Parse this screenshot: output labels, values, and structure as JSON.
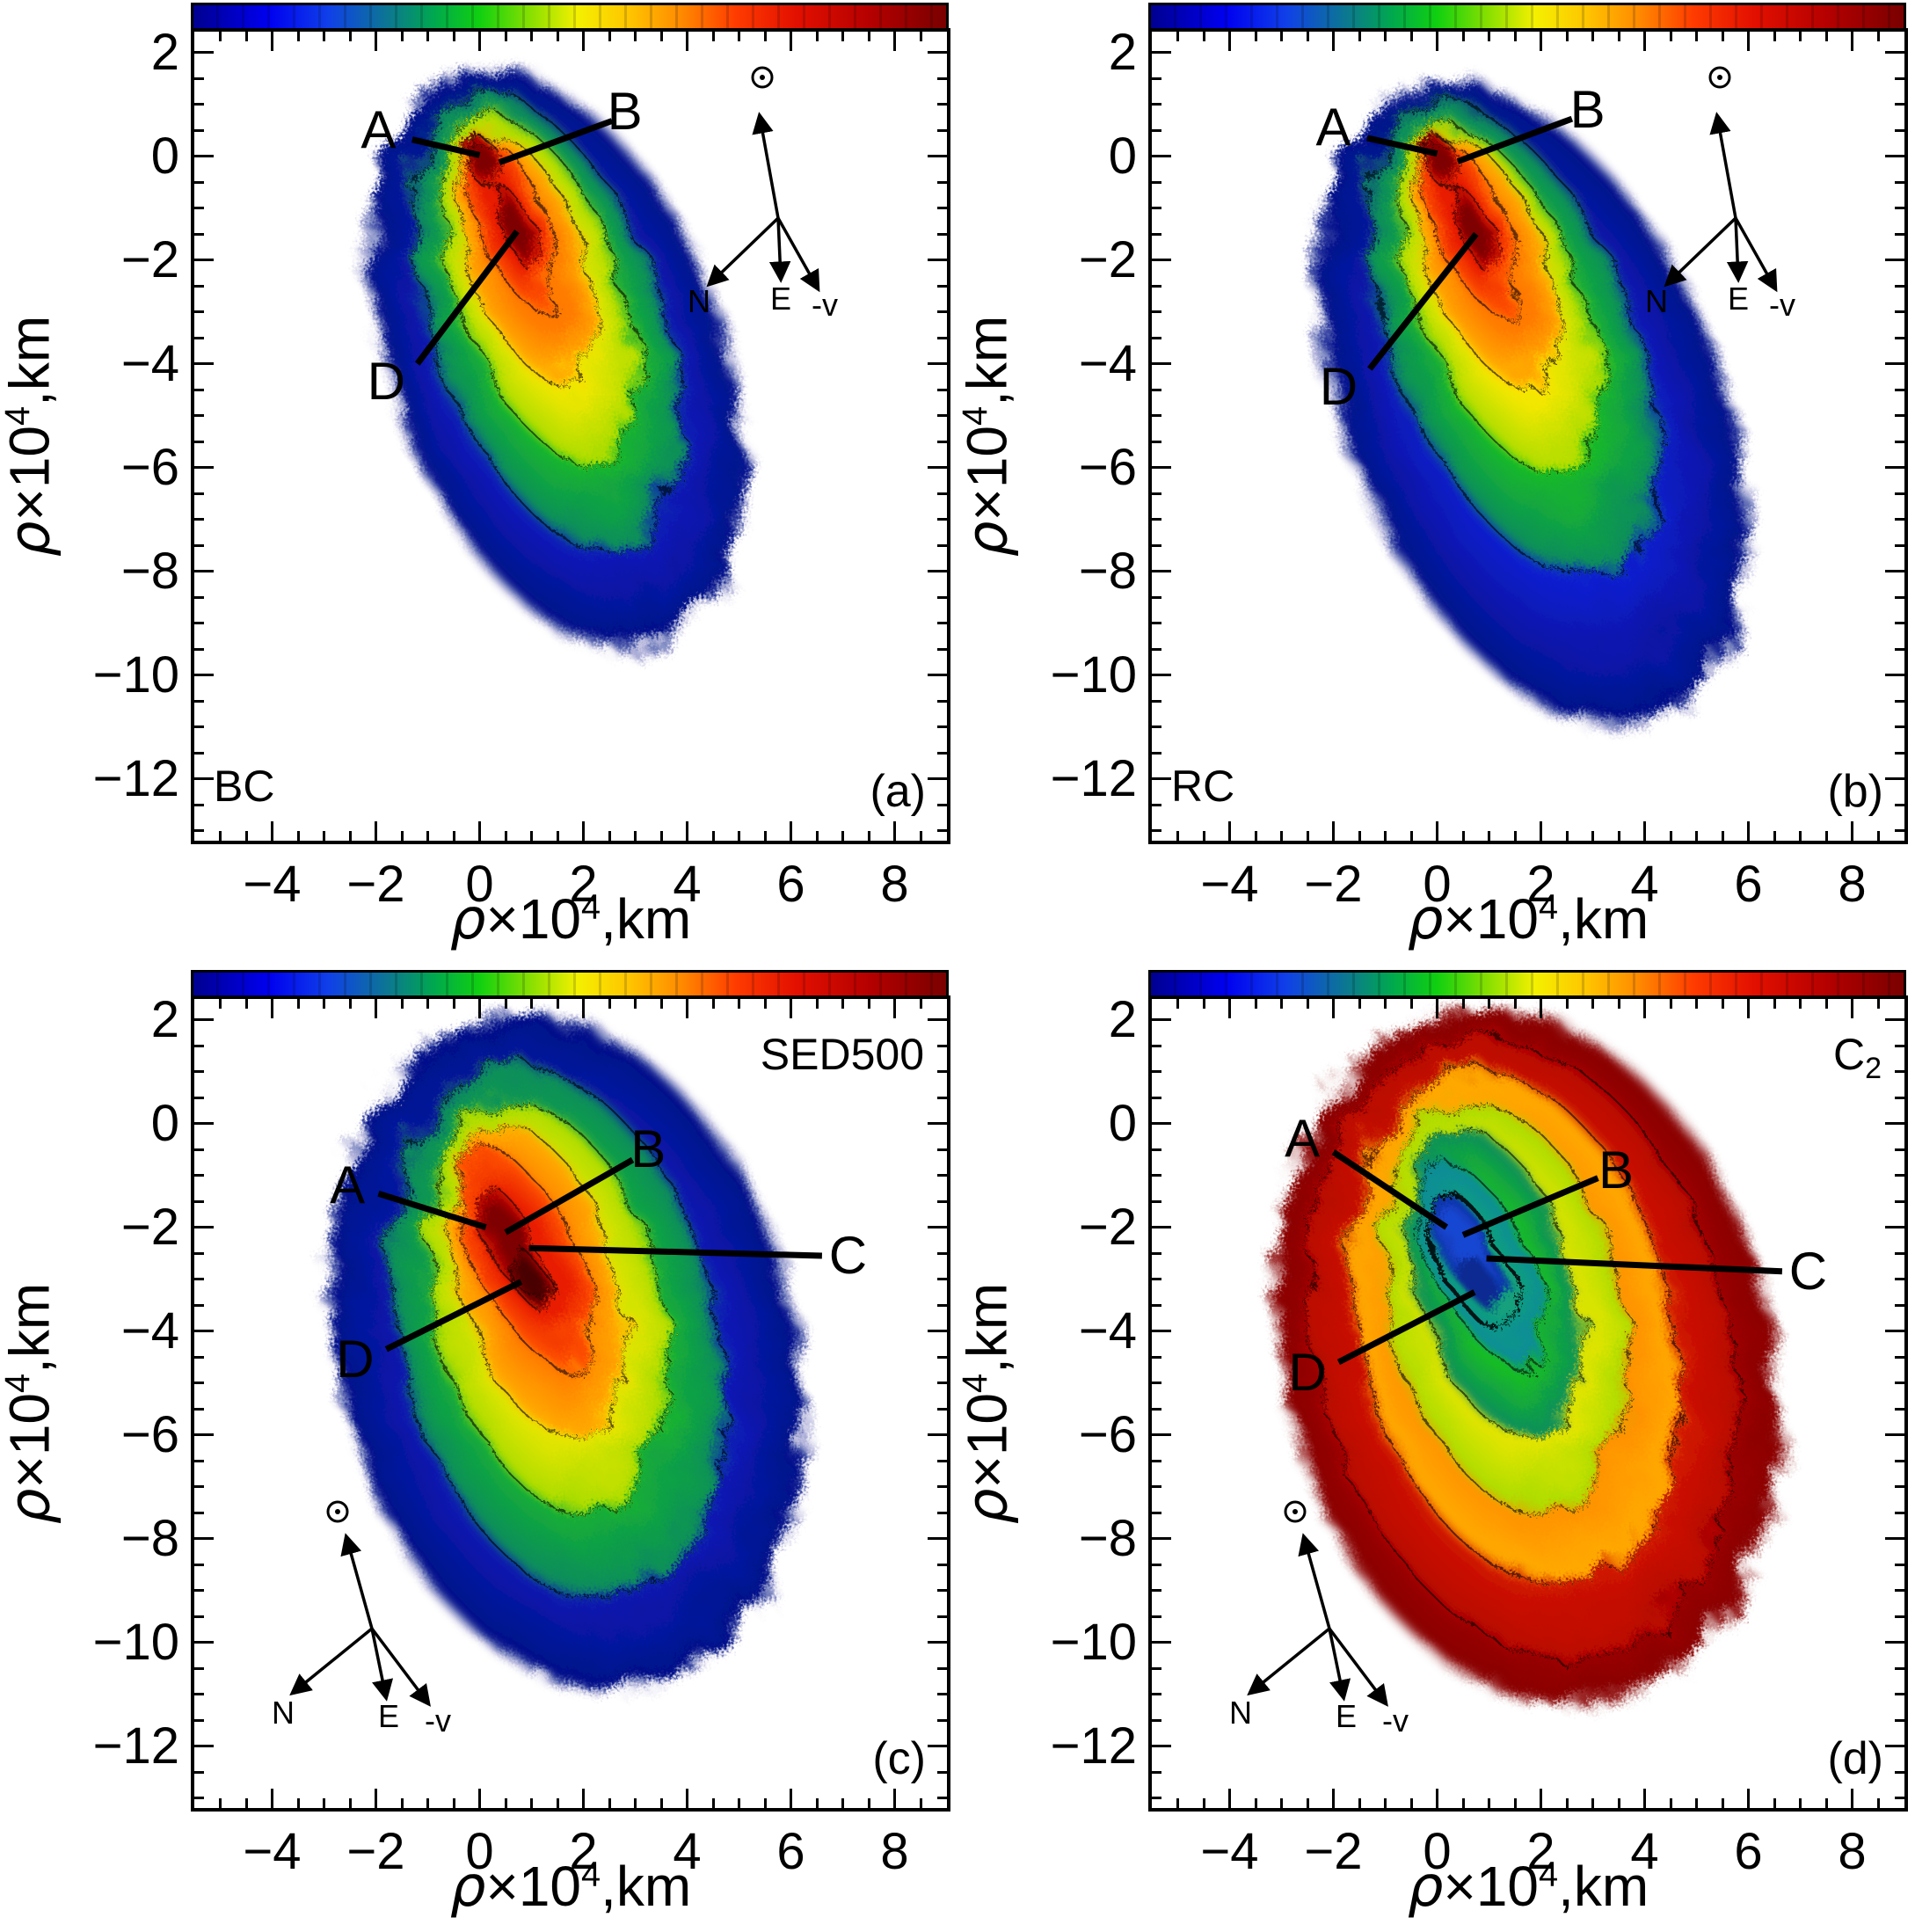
{
  "figure": {
    "axis_label": {
      "rho": "ρ",
      "base": "×10",
      "sup": "4",
      "unit": ",km"
    },
    "compass_labels": {
      "north": "N",
      "east": "E",
      "velocity": "-v",
      "sun_symbol": "⊙"
    },
    "colors": {
      "blue": "#0b1fd6",
      "blue_edge": "#041084",
      "green": "#17c31d",
      "green_edge": "#0d8a60",
      "yellow": "#ffe900",
      "yellow_edge": "#a8dc00",
      "orange": "#ff7a00",
      "orange_edge": "#ffae00",
      "red": "#e81c00",
      "red_edge": "#ff5400",
      "darkred": "#7e0000",
      "darkred_edge": "#c40800",
      "darkest": "#4a0000",
      "outer_darkred": "#c00800",
      "outer_darkred_edge": "#870000",
      "red2": "#e82400",
      "red2_edge": "#b80600",
      "teal": "#12a07c",
      "teal_edge": "#0c8a9a",
      "core_blue": "#1747d2",
      "core_blue_edge": "#0c2fa0",
      "core_navy": "#0a2a92"
    },
    "colorbar_stops": [
      "#000090 0%",
      "#0000f0 10%",
      "#1040e8 18%",
      "#0c7890 26%",
      "#00a84e 32%",
      "#10d010 38%",
      "#8ce000 45%",
      "#f4f000 51%",
      "#ffc400 58%",
      "#ff8800 65%",
      "#ff3c00 72%",
      "#e31000 80%",
      "#b40000 90%",
      "#7a0000 100%"
    ]
  },
  "panels": [
    {
      "id": "a",
      "tag": "(a)",
      "label": "BC",
      "label_sub": "",
      "xticks": [
        "−4",
        "−2",
        "0",
        "2",
        "4",
        "6",
        "8"
      ],
      "yticks": [
        "2",
        "0",
        "−2",
        "−4",
        "−6",
        "−8",
        "−10",
        "−12"
      ],
      "markers": [
        {
          "t": "A"
        },
        {
          "t": "B"
        },
        {
          "t": "D"
        }
      ]
    },
    {
      "id": "b",
      "tag": "(b)",
      "label": "RC",
      "label_sub": "",
      "xticks": [
        "−4",
        "−2",
        "0",
        "2",
        "4",
        "6",
        "8"
      ],
      "yticks": [
        "2",
        "0",
        "−2",
        "−4",
        "−6",
        "−8",
        "−10",
        "−12"
      ],
      "markers": [
        {
          "t": "A"
        },
        {
          "t": "B"
        },
        {
          "t": "D"
        }
      ]
    },
    {
      "id": "c",
      "tag": "(c)",
      "label": "SED500",
      "label_sub": "",
      "xticks": [
        "−4",
        "−2",
        "0",
        "2",
        "4",
        "6",
        "8"
      ],
      "yticks": [
        "2",
        "0",
        "−2",
        "−4",
        "−6",
        "−8",
        "−10",
        "−12"
      ],
      "markers": [
        {
          "t": "A"
        },
        {
          "t": "B"
        },
        {
          "t": "C"
        },
        {
          "t": "D"
        }
      ]
    },
    {
      "id": "d",
      "tag": "(d)",
      "label": "C",
      "label_sub": "2",
      "xticks": [
        "−4",
        "−2",
        "0",
        "2",
        "4",
        "6",
        "8"
      ],
      "yticks": [
        "2",
        "0",
        "−2",
        "−4",
        "−6",
        "−8",
        "−10",
        "−12"
      ],
      "markers": [
        {
          "t": "A"
        },
        {
          "t": "B"
        },
        {
          "t": "C"
        },
        {
          "t": "D"
        }
      ]
    }
  ],
  "chart_data": [
    {
      "type": "heatmap",
      "panel": "(a)",
      "series_label": "BC",
      "xlabel": "ρ×10⁴, km",
      "ylabel": "ρ×10⁴, km",
      "x_range": [
        -5.5,
        9.0
      ],
      "y_range": [
        -13.2,
        2.4
      ],
      "x_ticks": [
        -4,
        -2,
        0,
        2,
        4,
        6,
        8
      ],
      "y_ticks": [
        2,
        0,
        -2,
        -4,
        -6,
        -8,
        -10,
        -12
      ],
      "colormap": "rainbow, blue=low to dark red=high, with black isophote contours",
      "peaks": {
        "A": [
          0.0,
          0.0
        ],
        "B": [
          0.4,
          -0.15
        ],
        "D": [
          0.7,
          -1.4
        ]
      },
      "shape": "elongated comet coma from (0,1) down-right to (4,-9.5), bright double core near origin",
      "orientation_arrows": {
        "sun": "up",
        "N": "lower-left",
        "E": "down",
        "-v": "lower-right",
        "position": "top-right"
      }
    },
    {
      "type": "heatmap",
      "panel": "(b)",
      "series_label": "RC",
      "xlabel": "ρ×10⁴, km",
      "ylabel": "ρ×10⁴, km",
      "x_range": [
        -5.5,
        9.0
      ],
      "y_range": [
        -13.2,
        2.4
      ],
      "x_ticks": [
        -4,
        -2,
        0,
        2,
        4,
        6,
        8
      ],
      "y_ticks": [
        2,
        0,
        -2,
        -4,
        -6,
        -8,
        -10,
        -12
      ],
      "colormap": "rainbow, blue=low to dark red=high, with black isophote contours",
      "peaks": {
        "A": [
          0.0,
          0.0
        ],
        "B": [
          0.4,
          -0.1
        ],
        "D": [
          0.75,
          -1.45
        ]
      },
      "shape": "elongated coma, larger than (a), blue envelope reaching (5,-11.5)",
      "orientation_arrows": {
        "sun": "up",
        "N": "lower-left",
        "E": "down",
        "-v": "lower-right",
        "position": "top-right"
      }
    },
    {
      "type": "heatmap",
      "panel": "(c)",
      "series_label": "SED500",
      "xlabel": "ρ×10⁴, km",
      "ylabel": "ρ×10⁴, km",
      "x_range": [
        -5.5,
        9.0
      ],
      "y_range": [
        -13.2,
        2.4
      ],
      "x_ticks": [
        -4,
        -2,
        0,
        2,
        4,
        6,
        8
      ],
      "y_ticks": [
        2,
        0,
        -2,
        -4,
        -6,
        -8,
        -10,
        -12
      ],
      "colormap": "rainbow, blue=low to dark red=high, with black isophote contours",
      "peaks": {
        "A": [
          0.15,
          -2.05
        ],
        "B": [
          0.55,
          -2.15
        ],
        "C": [
          0.95,
          -2.45
        ],
        "D": [
          0.85,
          -3.05
        ]
      },
      "shape": "broad oval coma centred near (1.6,-4.4), dark red core near (0.7,-2.5)",
      "orientation_arrows": {
        "sun": "up",
        "N": "lower-left",
        "E": "down",
        "-v": "lower-right",
        "position": "bottom-left"
      }
    },
    {
      "type": "heatmap",
      "panel": "(d)",
      "series_label": "C2",
      "xlabel": "ρ×10⁴, km",
      "ylabel": "ρ×10⁴, km",
      "x_range": [
        -5.5,
        9.0
      ],
      "y_range": [
        -13.2,
        2.4
      ],
      "x_ticks": [
        -4,
        -2,
        0,
        2,
        4,
        6,
        8
      ],
      "y_ticks": [
        2,
        0,
        -2,
        -4,
        -6,
        -8,
        -10,
        -12
      ],
      "colormap": "reversed relative to (a)-(c): blue minimum at centre, red/dark-red envelope outside",
      "peaks": {
        "A": [
          0.2,
          -2.05
        ],
        "B": [
          0.5,
          -2.15
        ],
        "C": [
          0.95,
          -2.6
        ],
        "D": [
          0.75,
          -3.25
        ]
      },
      "shape": "broad oval coma centred near (1.7,-4.5) with small blue core near (0.6,-2.4)",
      "orientation_arrows": {
        "sun": "up",
        "N": "lower-left",
        "E": "down",
        "-v": "lower-right",
        "position": "bottom-left"
      }
    }
  ]
}
